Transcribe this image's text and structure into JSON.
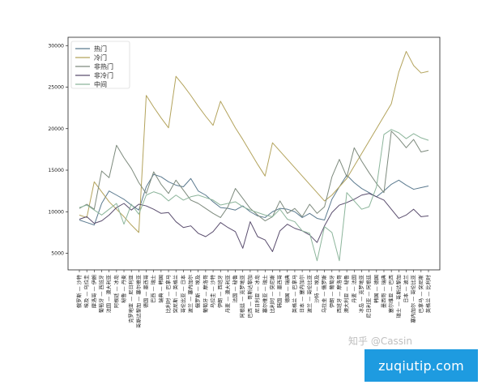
{
  "chart_data": {
    "type": "line",
    "title": "",
    "xlabel": "",
    "ylabel": "",
    "ylim": [
      3000,
      31000
    ],
    "yticks": [
      5000,
      10000,
      15000,
      20000,
      25000,
      30000
    ],
    "grid": false,
    "legend_position": "top-left",
    "categories": [
      "俄罗斯 — 沙特",
      "埃及 — 乌拉圭",
      "摩洛哥 — 伊朗",
      "葡萄牙 — 西班牙",
      "法国 — 澳大利亚",
      "阿根廷 — 冰岛",
      "秘鲁 — 丹麦",
      "克罗地亚 — 尼日利亚",
      "哥斯达黎加 — 塞尔维亚",
      "德国 — 墨西哥",
      "巴西 — 瑞士",
      "瑞典 — 韩国",
      "比利时 — 巴拿马",
      "突尼斯 — 英格兰",
      "哥伦比亚 — 日本",
      "波兰 — 塞内加尔",
      "俄罗斯 — 埃及",
      "葡萄牙 — 摩洛哥",
      "乌拉圭 — 沙特",
      "伊朗 — 西班牙",
      "丹麦 — 澳大利亚",
      "法国 — 秘鲁",
      "阿根廷 — 克罗地亚",
      "巴西 — 哥斯达黎加",
      "尼日利亚 — 冰岛",
      "塞尔维亚 — 瑞士",
      "比利时 — 突尼斯",
      "韩国 — 墨西哥",
      "德国 — 瑞典",
      "英格兰 — 巴拿马",
      "日本 — 塞内加尔",
      "波兰 — 哥伦比亚",
      "沙特 — 埃及",
      "乌拉圭 — 俄罗斯",
      "伊朗 — 葡萄牙",
      "西班牙 — 摩洛哥",
      "澳大利亚 — 秘鲁",
      "丹麦 — 法国",
      "冰岛 — 克罗地亚",
      "尼日利亚 — 阿根廷",
      "韩国 — 德国",
      "墨西哥 — 瑞典",
      "塞尔维亚 — 巴西",
      "瑞士 — 哥斯达黎加",
      "日本 — 波兰",
      "塞内加尔 — 哥伦比亚",
      "巴拿马 — 突尼斯",
      "英格兰 — 比利时"
    ],
    "series": [
      {
        "name": "热门",
        "color": "#5b7a8f",
        "values": [
          9000,
          8700,
          8400,
          11000,
          12500,
          12000,
          11500,
          10800,
          10200,
          13000,
          14500,
          14200,
          13600,
          13200,
          13000,
          14000,
          12500,
          12000,
          11200,
          10500,
          10400,
          10200,
          10700,
          10000,
          9500,
          9300,
          10000,
          10400,
          10300,
          10000,
          9300,
          9800,
          9200,
          9000,
          11500,
          13000,
          14400,
          13500,
          12800,
          12300,
          11800,
          12500,
          13300,
          13800,
          13200,
          12700,
          12900,
          13100
        ]
      },
      {
        "name": "冷门",
        "color": "#b3a35c",
        "values": [
          9600,
          9300,
          13600,
          12400,
          11200,
          10300,
          9400,
          8400,
          7500,
          24000,
          22600,
          21300,
          20100,
          26300,
          25200,
          24000,
          22700,
          21500,
          20400,
          23300,
          21700,
          20100,
          18700,
          17200,
          15700,
          14300,
          18300,
          17300,
          16300,
          15300,
          14300,
          13300,
          12300,
          11300,
          12000,
          13000,
          14000,
          15500,
          17000,
          18500,
          20000,
          21500,
          23000,
          26800,
          29300,
          27600,
          26700,
          26900
        ]
      },
      {
        "name": "非热门",
        "color": "#7d8a7d",
        "values": [
          10400,
          10900,
          10300,
          14900,
          14100,
          18000,
          16500,
          15200,
          13500,
          12200,
          14800,
          13300,
          12200,
          13800,
          12600,
          11400,
          11000,
          10400,
          9800,
          9300,
          10600,
          12800,
          11600,
          10400,
          9600,
          8900,
          9400,
          11300,
          9800,
          10400,
          9400,
          10900,
          9800,
          10600,
          14200,
          16300,
          14200,
          17700,
          16100,
          14700,
          13400,
          12300,
          19700,
          18800,
          17700,
          18700,
          17200,
          17400
        ]
      },
      {
        "name": "非冷门",
        "color": "#5a4d6e",
        "values": [
          9100,
          9400,
          8600,
          8900,
          9600,
          10500,
          11000,
          10200,
          10900,
          10700,
          10300,
          9800,
          9900,
          8800,
          8100,
          8300,
          7400,
          7000,
          7600,
          8700,
          8100,
          7600,
          5600,
          8800,
          7000,
          6600,
          5200,
          7700,
          8500,
          8000,
          7700,
          7200,
          6300,
          8300,
          9900,
          10800,
          11100,
          11500,
          12000,
          12200,
          11800,
          11400,
          10300,
          9200,
          9600,
          10300,
          9400,
          9500
        ]
      },
      {
        "name": "中间",
        "color": "#8cb59b",
        "values": [
          10500,
          10800,
          10200,
          9600,
          10300,
          11000,
          8500,
          10900,
          9700,
          12000,
          12400,
          12100,
          11300,
          12000,
          11400,
          11800,
          12000,
          11700,
          11400,
          10800,
          11000,
          11200,
          10600,
          10200,
          9900,
          9600,
          9400,
          10300,
          9100,
          8800,
          7700,
          7400,
          4100,
          8200,
          7500,
          4100,
          12300,
          11300,
          10300,
          10600,
          13000,
          19300,
          19900,
          19500,
          18800,
          19400,
          18900,
          18600
        ]
      }
    ]
  },
  "watermark": "知乎 @Cassin",
  "site_badge": "zuqiutip.com"
}
